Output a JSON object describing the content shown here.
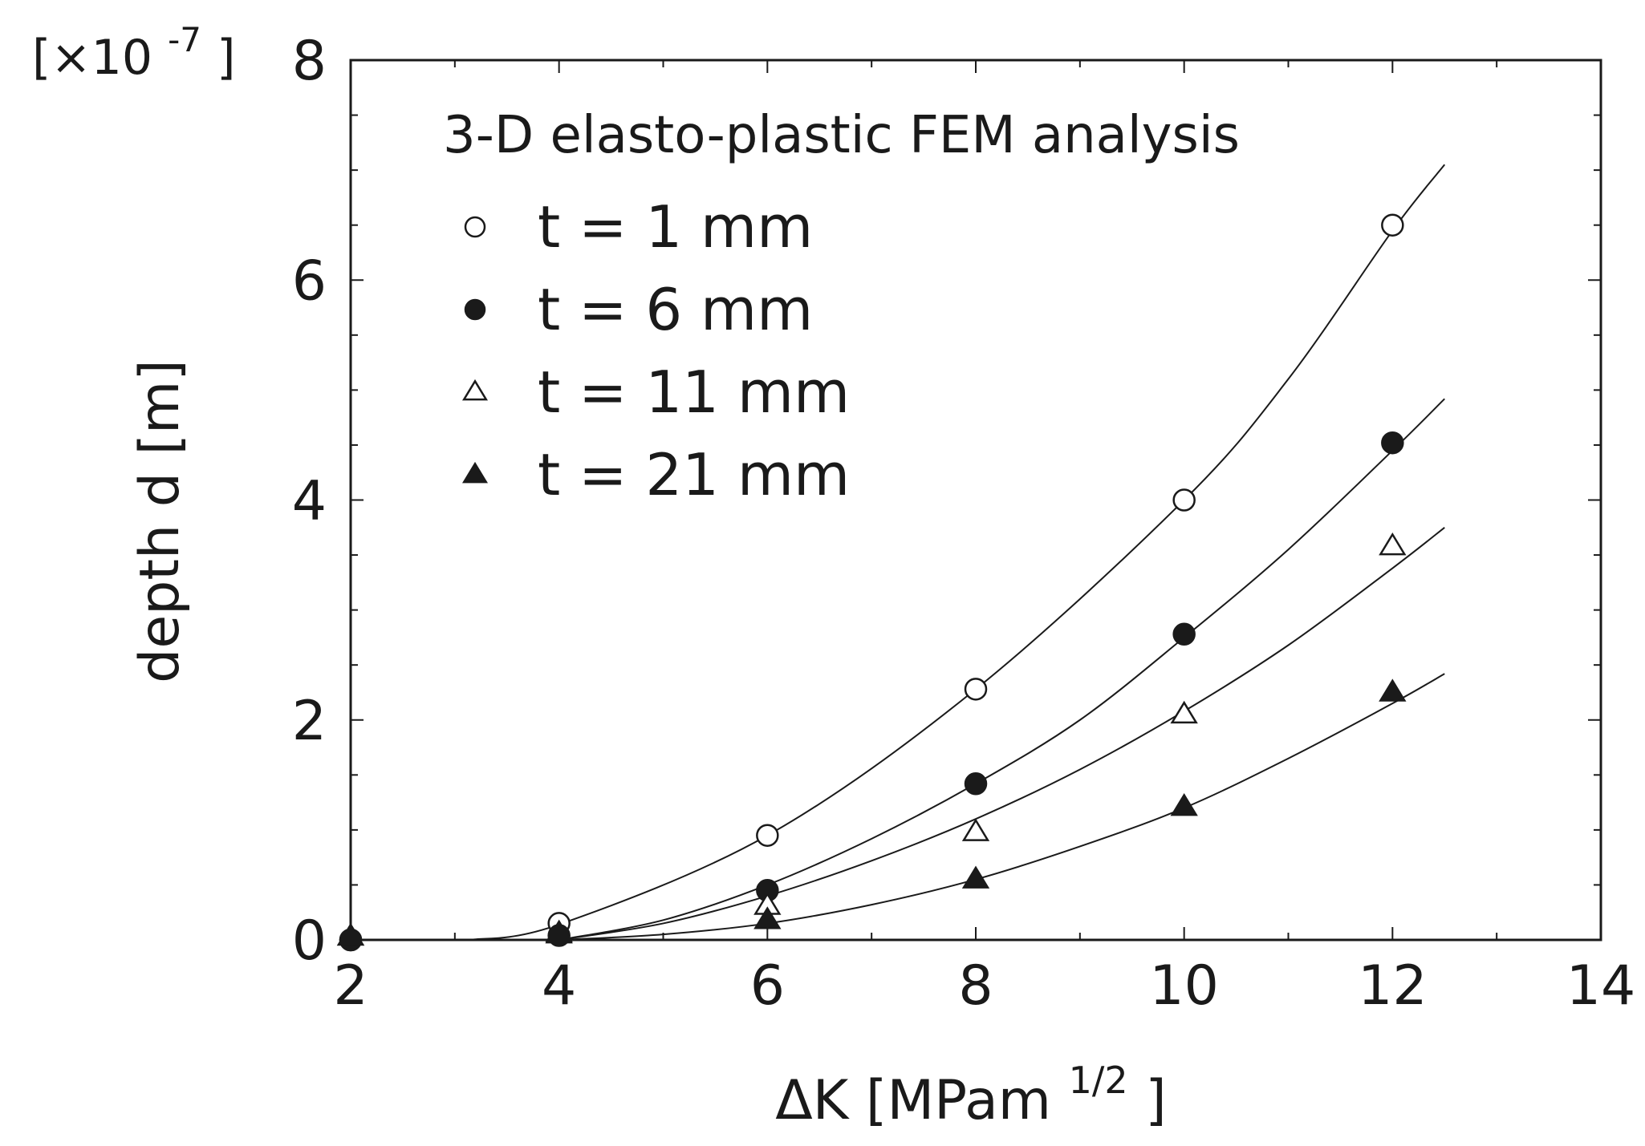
{
  "chart_data": {
    "type": "scatter",
    "title": "3-D elasto-plastic FEM analysis",
    "xlabel": "ΔK [MPam",
    "xlabel_sup": "1/2",
    "xlabel_end": "]",
    "ylabel": "depth d [m]",
    "y_multiplier": {
      "prefix": "[×10",
      "sup": "-7",
      "suffix": "]"
    },
    "xlim": [
      2,
      14
    ],
    "ylim": [
      0,
      8
    ],
    "x_ticks": [
      "2",
      "4",
      "6",
      "8",
      "10",
      "12",
      "14"
    ],
    "y_ticks": [
      "0",
      "2",
      "4",
      "6",
      "8"
    ],
    "legend_position": "top-left",
    "grid": false,
    "series": [
      {
        "name": "t = 1 mm",
        "marker": "circle-open",
        "x": [
          2,
          4,
          6,
          8,
          10,
          12
        ],
        "y": [
          0,
          0.15,
          0.95,
          2.28,
          4.0,
          6.5
        ],
        "fit": [
          [
            3.15,
            0
          ],
          [
            4,
            0.14
          ],
          [
            6,
            0.95
          ],
          [
            8,
            2.28
          ],
          [
            10,
            4.0
          ],
          [
            11,
            5.1
          ],
          [
            12,
            6.45
          ],
          [
            12.5,
            7.05
          ]
        ]
      },
      {
        "name": "t = 6 mm",
        "marker": "circle-filled",
        "x": [
          2,
          4,
          6,
          8,
          10,
          12
        ],
        "y": [
          0,
          0.04,
          0.45,
          1.42,
          2.78,
          4.52
        ],
        "fit": [
          [
            4,
            0
          ],
          [
            5,
            0.18
          ],
          [
            6,
            0.5
          ],
          [
            7,
            0.92
          ],
          [
            8,
            1.42
          ],
          [
            9,
            2.0
          ],
          [
            10,
            2.75
          ],
          [
            11,
            3.55
          ],
          [
            12,
            4.45
          ],
          [
            12.5,
            4.92
          ]
        ]
      },
      {
        "name": "t = 11 mm",
        "marker": "triangle-open",
        "x": [
          2,
          4,
          6,
          8,
          10,
          12
        ],
        "y": [
          0,
          0.03,
          0.28,
          0.95,
          2.02,
          3.55
        ],
        "fit": [
          [
            4,
            0
          ],
          [
            5,
            0.15
          ],
          [
            6,
            0.4
          ],
          [
            7,
            0.72
          ],
          [
            8,
            1.1
          ],
          [
            9,
            1.55
          ],
          [
            10,
            2.08
          ],
          [
            11,
            2.68
          ],
          [
            12,
            3.38
          ],
          [
            12.5,
            3.75
          ]
        ]
      },
      {
        "name": "t = 21 mm",
        "marker": "triangle-filled",
        "x": [
          2,
          4,
          6,
          8,
          10,
          12
        ],
        "y": [
          0,
          0.02,
          0.15,
          0.52,
          1.18,
          2.22
        ],
        "fit": [
          [
            4,
            0
          ],
          [
            5,
            0.05
          ],
          [
            6,
            0.15
          ],
          [
            7,
            0.32
          ],
          [
            8,
            0.55
          ],
          [
            9,
            0.85
          ],
          [
            10,
            1.2
          ],
          [
            11,
            1.65
          ],
          [
            12,
            2.15
          ],
          [
            12.5,
            2.42
          ]
        ]
      }
    ]
  }
}
